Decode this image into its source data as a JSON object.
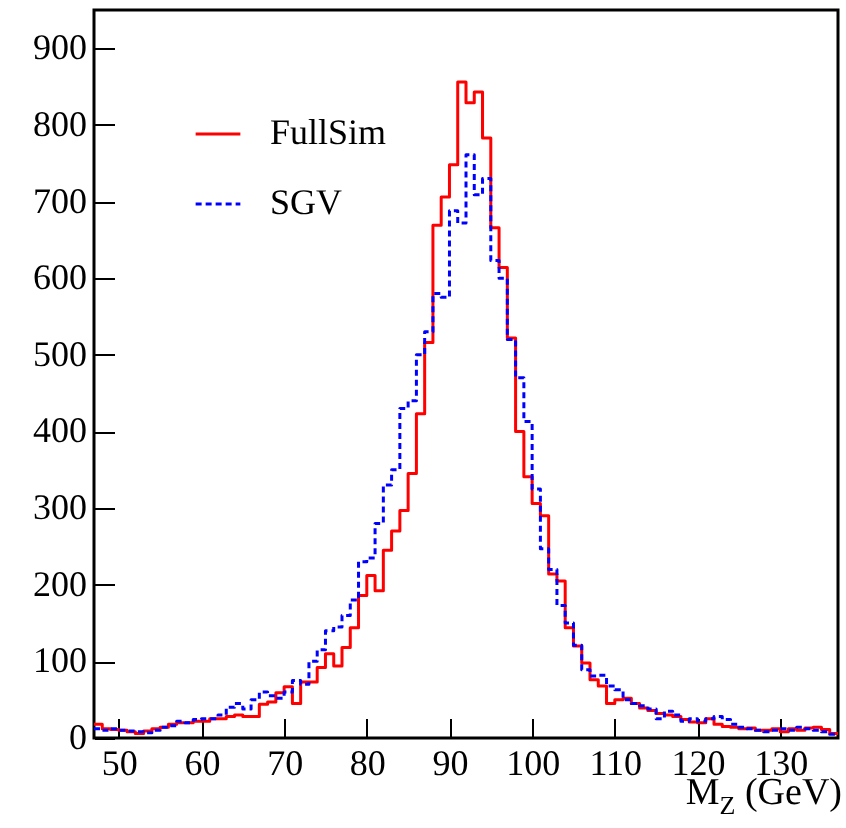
{
  "chart_data": {
    "type": "histogram",
    "xlabel": "M$_{Z}$ (GeV)",
    "bins": [
      47,
      48,
      49,
      50,
      51,
      52,
      53,
      54,
      55,
      56,
      57,
      58,
      59,
      60,
      61,
      62,
      63,
      64,
      65,
      66,
      67,
      68,
      69,
      70,
      71,
      72,
      73,
      74,
      75,
      76,
      77,
      78,
      79,
      80,
      81,
      82,
      83,
      84,
      85,
      86,
      87,
      88,
      89,
      90,
      91,
      92,
      93,
      94,
      95,
      96,
      97,
      98,
      99,
      100,
      101,
      102,
      103,
      104,
      105,
      106,
      107,
      108,
      109,
      110,
      111,
      112,
      113,
      114,
      115,
      116,
      117,
      118,
      119,
      120,
      121,
      122,
      123,
      124,
      125,
      126,
      127,
      128,
      129,
      130,
      131,
      132,
      133,
      134,
      135,
      136,
      137
    ],
    "series": [
      {
        "name": "FullSim",
        "color": "#ff0000",
        "line_style": "solid",
        "values": [
          18,
          12,
          11,
          10,
          8,
          6,
          9,
          12,
          14,
          18,
          20,
          20,
          22,
          22,
          25,
          25,
          28,
          30,
          28,
          28,
          44,
          47,
          59,
          67,
          45,
          73,
          73,
          92,
          110,
          94,
          118,
          144,
          186,
          212,
          192,
          245,
          270,
          297,
          345,
          423,
          516,
          669,
          706,
          748,
          856,
          829,
          843,
          783,
          666,
          614,
          522,
          400,
          341,
          306,
          290,
          214,
          205,
          144,
          120,
          98,
          76,
          68,
          45,
          50,
          52,
          45,
          39,
          36,
          32,
          30,
          28,
          24,
          21,
          20,
          25,
          18,
          15,
          14,
          12,
          13,
          10,
          10,
          12,
          8,
          12,
          10,
          13,
          14,
          11,
          6
        ]
      },
      {
        "name": "SGV",
        "color": "#0000ff",
        "line_style": "dashed",
        "values": [
          12,
          10,
          12,
          10,
          9,
          8,
          7,
          10,
          14,
          16,
          22,
          20,
          24,
          25,
          25,
          30,
          40,
          45,
          38,
          50,
          60,
          55,
          52,
          60,
          75,
          70,
          100,
          115,
          140,
          145,
          160,
          180,
          230,
          235,
          280,
          330,
          350,
          430,
          440,
          500,
          530,
          580,
          575,
          688,
          672,
          761,
          709,
          730,
          623,
          600,
          520,
          470,
          413,
          325,
          247,
          220,
          173,
          150,
          121,
          89,
          81,
          82,
          68,
          63,
          50,
          45,
          42,
          38,
          25,
          35,
          30,
          22,
          25,
          22,
          25,
          28,
          24,
          18,
          14,
          12,
          10,
          8,
          10,
          12,
          10,
          14,
          12,
          10,
          8,
          5
        ]
      }
    ],
    "xlim": [
      47,
      137
    ],
    "ylim": [
      0,
      950
    ],
    "xticks": [
      50,
      60,
      70,
      80,
      90,
      100,
      110,
      120,
      130
    ],
    "yticks": [
      0,
      100,
      200,
      300,
      400,
      500,
      600,
      700,
      800,
      900
    ],
    "legend": "top left",
    "grid": false
  }
}
